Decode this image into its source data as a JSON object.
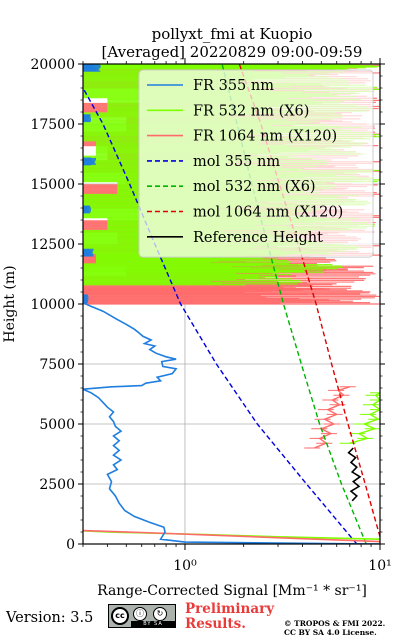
{
  "chart_data": {
    "type": "line",
    "title_line1": "pollyxt_fmi at Kuopio",
    "title_line2": "[Averaged] 20220829 09:00-09:59",
    "xlabel": "Range-Corrected Signal [Mm⁻¹ * sr⁻¹]",
    "ylabel": "Height (m)",
    "x_scale": "log",
    "xlim": [
      0.3,
      10
    ],
    "ylim": [
      0,
      20000
    ],
    "x_ticks": [
      {
        "value": 1,
        "label": "10⁰"
      },
      {
        "value": 10,
        "label": "10¹"
      }
    ],
    "y_ticks": [
      0,
      2500,
      5000,
      7500,
      10000,
      12500,
      15000,
      17500,
      20000
    ],
    "grid": true,
    "legend_position": "top-right",
    "series": [
      {
        "name": "FR 355 nm",
        "color": "#1f7ee0",
        "style": "solid",
        "points": [
          [
            10,
            0
          ],
          [
            1.0,
            80
          ],
          [
            0.75,
            200
          ],
          [
            0.79,
            500
          ],
          [
            0.78,
            700
          ],
          [
            0.66,
            900
          ],
          [
            0.55,
            1150
          ],
          [
            0.49,
            1400
          ],
          [
            0.46,
            1700
          ],
          [
            0.44,
            2000
          ],
          [
            0.41,
            2300
          ],
          [
            0.42,
            2600
          ],
          [
            0.4,
            2900
          ],
          [
            0.45,
            3100
          ],
          [
            0.43,
            3300
          ],
          [
            0.47,
            3500
          ],
          [
            0.43,
            3700
          ],
          [
            0.46,
            3900
          ],
          [
            0.43,
            4100
          ],
          [
            0.46,
            4300
          ],
          [
            0.43,
            4500
          ],
          [
            0.47,
            4700
          ],
          [
            0.44,
            4900
          ],
          [
            0.43,
            5100
          ],
          [
            0.41,
            5300
          ],
          [
            0.43,
            5500
          ],
          [
            0.4,
            5700
          ],
          [
            0.38,
            5900
          ],
          [
            0.36,
            6100
          ],
          [
            0.33,
            6300
          ],
          [
            0.3,
            6450
          ],
          [
            0.42,
            6550
          ],
          [
            0.6,
            6600
          ],
          [
            0.63,
            6700
          ],
          [
            0.75,
            6800
          ],
          [
            0.72,
            6950
          ],
          [
            0.86,
            7100
          ],
          [
            0.9,
            7300
          ],
          [
            0.77,
            7400
          ],
          [
            0.76,
            7600
          ],
          [
            0.9,
            7700
          ],
          [
            0.8,
            7800
          ],
          [
            0.71,
            7950
          ],
          [
            0.66,
            8100
          ],
          [
            0.7,
            8250
          ],
          [
            0.62,
            8350
          ],
          [
            0.67,
            8500
          ],
          [
            0.61,
            8650
          ],
          [
            0.58,
            8800
          ],
          [
            0.55,
            8950
          ],
          [
            0.5,
            9150
          ],
          [
            0.44,
            9400
          ],
          [
            0.38,
            9700
          ],
          [
            0.33,
            9900
          ],
          [
            0.3,
            10050
          ]
        ]
      },
      {
        "name": "FR 532 nm (X6)",
        "color": "#7fff00",
        "style": "solid",
        "points": [
          [
            10,
            200
          ],
          [
            3.0,
            300
          ],
          [
            1.2,
            400
          ],
          [
            0.4,
            500
          ],
          [
            0.3,
            550
          ]
        ]
      },
      {
        "name": "FR 1064 nm (X120)",
        "color": "#ff6b6b",
        "style": "solid",
        "points": [
          [
            10,
            100
          ],
          [
            4.0,
            220
          ],
          [
            1.5,
            360
          ],
          [
            0.6,
            480
          ],
          [
            0.3,
            560
          ]
        ]
      },
      {
        "name": "mol 355 nm",
        "color": "#0000e0",
        "style": "dashed",
        "points": [
          [
            7.6,
            0
          ],
          [
            4.2,
            2500
          ],
          [
            2.35,
            5000
          ],
          [
            1.45,
            7500
          ],
          [
            0.95,
            10000
          ],
          [
            0.7,
            12500
          ],
          [
            0.52,
            15000
          ],
          [
            0.38,
            17500
          ],
          [
            0.3,
            19000
          ]
        ]
      },
      {
        "name": "mol 532 nm (X6)",
        "color": "#00b400",
        "style": "dashed",
        "points": [
          [
            8.5,
            0
          ],
          [
            6.35,
            2500
          ],
          [
            4.9,
            5000
          ],
          [
            3.95,
            7500
          ],
          [
            3.2,
            10000
          ],
          [
            2.65,
            12500
          ],
          [
            2.2,
            15000
          ],
          [
            1.85,
            17500
          ],
          [
            1.55,
            20000
          ]
        ]
      },
      {
        "name": "mol 1064 nm (X120)",
        "color": "#e00000",
        "style": "dashed",
        "points": [
          [
            10,
            300
          ],
          [
            8.4,
            2500
          ],
          [
            6.85,
            5000
          ],
          [
            5.65,
            7500
          ],
          [
            4.7,
            10000
          ],
          [
            3.8,
            12500
          ],
          [
            3.05,
            15000
          ],
          [
            2.45,
            17500
          ],
          [
            1.9,
            20000
          ]
        ]
      },
      {
        "name": "Reference Height",
        "color": "#000000",
        "style": "solid",
        "points": [
          [
            7.2,
            1800
          ],
          [
            7.6,
            2000
          ],
          [
            7.1,
            2200
          ],
          [
            7.8,
            2400
          ],
          [
            7.3,
            2600
          ],
          [
            7.9,
            2800
          ],
          [
            7.2,
            3000
          ],
          [
            7.6,
            3200
          ],
          [
            7.1,
            3400
          ],
          [
            7.5,
            3600
          ],
          [
            6.9,
            3800
          ],
          [
            7.3,
            4000
          ]
        ]
      }
    ],
    "noisy_bands": [
      {
        "name": "FR 1064 nm (X120)",
        "color": "#ff6b6b",
        "segments": [
          [
            10000,
            10400,
            0.3,
            10
          ],
          [
            10400,
            10700,
            0.3,
            9.0
          ],
          [
            10700,
            11200,
            0.3,
            8.5
          ],
          [
            11200,
            11600,
            0.5,
            9.5
          ],
          [
            11600,
            12000,
            0.3,
            6.0
          ],
          [
            12000,
            12500,
            0.3,
            10
          ],
          [
            12500,
            13000,
            0.45,
            8.0
          ],
          [
            13000,
            13500,
            0.3,
            9.5
          ],
          [
            13500,
            14000,
            0.6,
            10
          ],
          [
            14000,
            14500,
            0.3,
            7.5
          ],
          [
            14500,
            15000,
            0.3,
            10
          ],
          [
            15000,
            15500,
            0.5,
            9.0
          ],
          [
            15500,
            16000,
            0.3,
            10
          ],
          [
            16000,
            16600,
            0.4,
            8.0
          ],
          [
            16600,
            17200,
            0.3,
            10
          ],
          [
            17200,
            17800,
            0.5,
            9.5
          ],
          [
            17800,
            18400,
            0.3,
            10
          ],
          [
            18400,
            19000,
            0.6,
            10
          ],
          [
            19000,
            19600,
            0.3,
            9.0
          ],
          [
            19600,
            20000,
            0.3,
            10
          ]
        ],
        "lower_points": [
          [
            4.6,
            4000
          ],
          [
            5.3,
            4200
          ],
          [
            4.9,
            4400
          ],
          [
            5.6,
            4600
          ],
          [
            5.0,
            4800
          ],
          [
            5.8,
            5000
          ],
          [
            5.2,
            5200
          ],
          [
            6.0,
            5400
          ],
          [
            5.4,
            5600
          ],
          [
            6.2,
            5800
          ],
          [
            5.7,
            6000
          ],
          [
            6.5,
            6200
          ],
          [
            6.1,
            6400
          ],
          [
            7.0,
            6550
          ]
        ]
      },
      {
        "name": "FR 532 nm (X6)",
        "color": "#7fff00",
        "segments": [
          [
            10800,
            11300,
            0.3,
            4.0
          ],
          [
            11300,
            11700,
            0.3,
            6.5
          ],
          [
            11700,
            12100,
            0.35,
            3.5
          ],
          [
            12100,
            12600,
            0.3,
            8.0
          ],
          [
            12600,
            13100,
            0.3,
            4.5
          ],
          [
            13100,
            13600,
            0.4,
            9.5
          ],
          [
            13600,
            14100,
            0.3,
            5.0
          ],
          [
            14100,
            14600,
            0.3,
            9.0
          ],
          [
            14600,
            15100,
            0.45,
            6.0
          ],
          [
            15100,
            15600,
            0.3,
            10
          ],
          [
            15600,
            16200,
            0.3,
            5.5
          ],
          [
            16200,
            16800,
            0.35,
            8.5
          ],
          [
            16800,
            17400,
            0.3,
            10
          ],
          [
            17400,
            18000,
            0.3,
            6.5
          ],
          [
            18000,
            18600,
            0.4,
            9.0
          ],
          [
            18600,
            19200,
            0.3,
            10
          ],
          [
            19200,
            19800,
            0.3,
            7.0
          ],
          [
            19800,
            20000,
            0.3,
            10
          ]
        ],
        "lower_points": [
          [
            7.0,
            4200
          ],
          [
            8.6,
            4400
          ],
          [
            7.8,
            4600
          ],
          [
            9.4,
            4800
          ],
          [
            8.3,
            5000
          ],
          [
            9.8,
            5200
          ],
          [
            8.9,
            5400
          ],
          [
            10,
            5600
          ],
          [
            9.2,
            5800
          ],
          [
            10,
            6000
          ],
          [
            9.5,
            6200
          ],
          [
            10,
            6300
          ]
        ]
      },
      {
        "name": "FR 355 nm",
        "color": "#1f7ee0",
        "segments": [
          [
            10050,
            10400,
            0.3,
            0.32
          ],
          [
            12000,
            12300,
            0.3,
            0.34
          ],
          [
            13800,
            14100,
            0.3,
            0.33
          ],
          [
            15800,
            16100,
            0.3,
            0.35
          ],
          [
            17600,
            17900,
            0.3,
            0.33
          ],
          [
            19700,
            20000,
            0.3,
            0.37
          ]
        ]
      }
    ]
  },
  "footer": {
    "version": "Version: 3.5",
    "cc_by": "BY",
    "cc_sa": "SA",
    "cc_strip": "BY SA",
    "preliminary_line1": "Preliminary",
    "preliminary_line2": "Results.",
    "copyright_line1": "© TROPOS & FMI 2022.",
    "copyright_line2": "CC BY SA 4.0 License."
  }
}
